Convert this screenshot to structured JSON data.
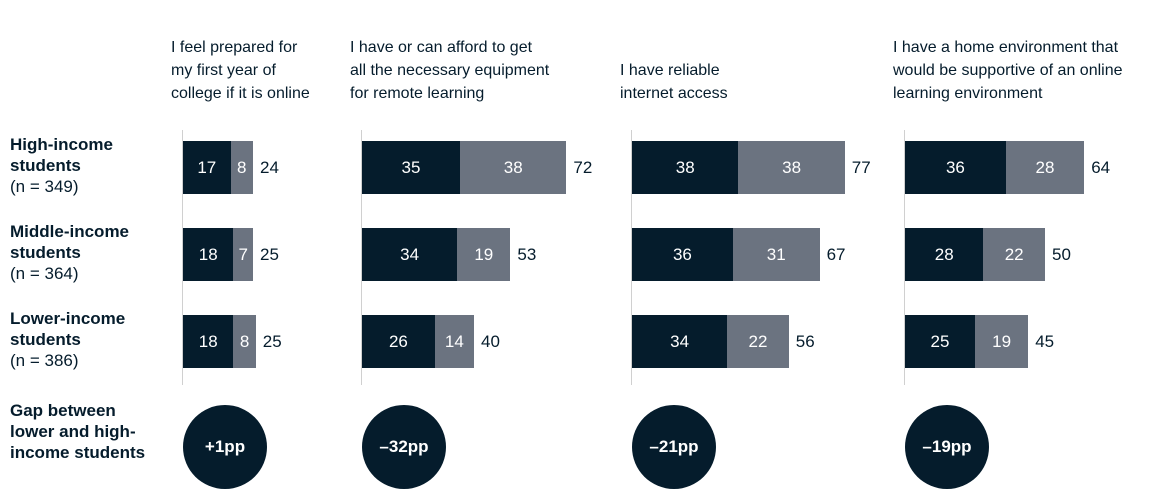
{
  "rows": [
    {
      "label": "High-income students",
      "n": "(n = 349)"
    },
    {
      "label": "Middle-income students",
      "n": "(n = 364)"
    },
    {
      "label": "Lower-income students",
      "n": "(n = 386)"
    }
  ],
  "gap_title": "Gap between lower and high-income students",
  "chart_data": [
    {
      "type": "stacked-bar",
      "title": "I feel prepared for my first year of college if it is online",
      "xlim": [
        0,
        80
      ],
      "series": [
        {
          "color": "#051c2c",
          "values": [
            17,
            18,
            18
          ]
        },
        {
          "color": "#6b7380",
          "values": [
            8,
            7,
            8
          ]
        }
      ],
      "totals": [
        24,
        25,
        25
      ],
      "gap_label": "+1pp"
    },
    {
      "type": "stacked-bar",
      "title": "I have or can afford to get all the necessary equipment for remote learning",
      "xlim": [
        0,
        80
      ],
      "series": [
        {
          "color": "#051c2c",
          "values": [
            35,
            34,
            26
          ]
        },
        {
          "color": "#6b7380",
          "values": [
            38,
            19,
            14
          ]
        }
      ],
      "totals": [
        72,
        53,
        40
      ],
      "gap_label": "–32pp"
    },
    {
      "type": "stacked-bar",
      "title": "I have reliable internet access",
      "xlim": [
        0,
        80
      ],
      "series": [
        {
          "color": "#051c2c",
          "values": [
            38,
            36,
            34
          ]
        },
        {
          "color": "#6b7380",
          "values": [
            38,
            31,
            22
          ]
        }
      ],
      "totals": [
        77,
        67,
        56
      ],
      "gap_label": "–21pp"
    },
    {
      "type": "stacked-bar",
      "title": "I have a home environment that would be supportive of an online learning environment",
      "xlim": [
        0,
        80
      ],
      "series": [
        {
          "color": "#051c2c",
          "values": [
            36,
            28,
            25
          ]
        },
        {
          "color": "#6b7380",
          "values": [
            28,
            22,
            19
          ]
        }
      ],
      "totals": [
        64,
        50,
        45
      ],
      "gap_label": "–19pp"
    }
  ]
}
